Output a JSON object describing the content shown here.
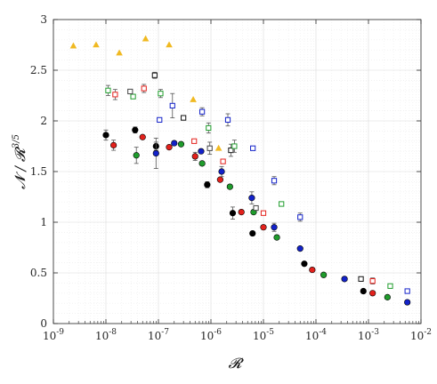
{
  "chart_data": {
    "type": "scatter",
    "xscale": "log",
    "xlim": [
      1e-09,
      0.01
    ],
    "ylim": [
      0,
      3
    ],
    "grid": true,
    "xlabel": "𝓡",
    "ylabel": "𝓝 / 𝓡^{3/5}",
    "x_ticks": [
      {
        "value": 1e-09,
        "base": "10",
        "exp": "-9"
      },
      {
        "value": 1e-08,
        "base": "10",
        "exp": "-8"
      },
      {
        "value": 1e-07,
        "base": "10",
        "exp": "-7"
      },
      {
        "value": 1e-06,
        "base": "10",
        "exp": "-6"
      },
      {
        "value": 1e-05,
        "base": "10",
        "exp": "-5"
      },
      {
        "value": 0.0001,
        "base": "10",
        "exp": "-4"
      },
      {
        "value": 0.001,
        "base": "10",
        "exp": "-3"
      },
      {
        "value": 0.01,
        "base": "10",
        "exp": "-2"
      }
    ],
    "y_ticks": [
      {
        "value": 0,
        "label": "0"
      },
      {
        "value": 0.5,
        "label": "0.5"
      },
      {
        "value": 1,
        "label": "1"
      },
      {
        "value": 1.5,
        "label": "1.5"
      },
      {
        "value": 2,
        "label": "2"
      },
      {
        "value": 2.5,
        "label": "2.5"
      },
      {
        "value": 3,
        "label": "3"
      }
    ],
    "series": [
      {
        "marker": "triangle",
        "color": "#f0b921",
        "filled": true,
        "points": [
          {
            "x": 2.4e-09,
            "y": 2.74
          },
          {
            "x": 6.5e-09,
            "y": 2.75
          },
          {
            "x": 1.8e-08,
            "y": 2.67
          },
          {
            "x": 5.7e-08,
            "y": 2.81
          },
          {
            "x": 1.6e-07,
            "y": 2.75
          },
          {
            "x": 4.6e-07,
            "y": 2.21
          },
          {
            "x": 1.4e-06,
            "y": 1.73
          }
        ]
      },
      {
        "marker": "circle",
        "color": "#000000",
        "filled": true,
        "points": [
          {
            "x": 1e-08,
            "y": 1.86,
            "err": 0.05
          },
          {
            "x": 3.6e-08,
            "y": 1.91,
            "err": 0.03
          },
          {
            "x": 9e-08,
            "y": 1.75,
            "err": 0.04
          },
          {
            "x": 8.5e-07,
            "y": 1.37,
            "err": 0.03
          },
          {
            "x": 2.6e-06,
            "y": 1.09,
            "err": 0.06
          },
          {
            "x": 6.2e-06,
            "y": 0.89
          },
          {
            "x": 6e-05,
            "y": 0.59
          },
          {
            "x": 0.0008,
            "y": 0.32
          }
        ]
      },
      {
        "marker": "circle",
        "color": "#e3211c",
        "filled": true,
        "points": [
          {
            "x": 1.4e-08,
            "y": 1.76,
            "err": 0.05
          },
          {
            "x": 5e-08,
            "y": 1.84
          },
          {
            "x": 1.6e-07,
            "y": 1.74
          },
          {
            "x": 5e-07,
            "y": 1.65,
            "err": 0.04
          },
          {
            "x": 1.5e-06,
            "y": 1.42
          },
          {
            "x": 3.8e-06,
            "y": 1.1
          },
          {
            "x": 1e-05,
            "y": 0.95
          },
          {
            "x": 8.5e-05,
            "y": 0.53
          },
          {
            "x": 0.0012,
            "y": 0.3
          }
        ]
      },
      {
        "marker": "circle",
        "color": "#1f9c2c",
        "filled": true,
        "points": [
          {
            "x": 3.8e-08,
            "y": 1.66,
            "err": 0.08
          },
          {
            "x": 2.7e-07,
            "y": 1.77
          },
          {
            "x": 6.8e-07,
            "y": 1.58
          },
          {
            "x": 2.3e-06,
            "y": 1.35
          },
          {
            "x": 6.5e-06,
            "y": 1.1
          },
          {
            "x": 1.8e-05,
            "y": 0.85
          },
          {
            "x": 0.00014,
            "y": 0.48
          },
          {
            "x": 0.0023,
            "y": 0.26
          }
        ]
      },
      {
        "marker": "circle",
        "color": "#1322c9",
        "filled": true,
        "points": [
          {
            "x": 9e-08,
            "y": 1.68,
            "err": 0.15
          },
          {
            "x": 2e-07,
            "y": 1.78
          },
          {
            "x": 6.5e-07,
            "y": 1.7
          },
          {
            "x": 1.6e-06,
            "y": 1.5,
            "err": 0.05
          },
          {
            "x": 6e-06,
            "y": 1.24,
            "err": 0.06
          },
          {
            "x": 1.6e-05,
            "y": 0.95,
            "err": 0.04
          },
          {
            "x": 5e-05,
            "y": 0.74
          },
          {
            "x": 0.00035,
            "y": 0.44
          },
          {
            "x": 0.0055,
            "y": 0.21
          }
        ]
      },
      {
        "marker": "square",
        "color": "#111111",
        "filled": false,
        "points": [
          {
            "x": 8.5e-08,
            "y": 2.45,
            "err": 0.03
          },
          {
            "x": 3e-07,
            "y": 2.03
          },
          {
            "x": 2.4e-06,
            "y": 1.71,
            "err": 0.06
          },
          {
            "x": 0.00072,
            "y": 0.44
          }
        ]
      },
      {
        "marker": "square",
        "color": "#e3211c",
        "filled": false,
        "points": [
          {
            "x": 1.5e-08,
            "y": 2.26,
            "err": 0.05
          },
          {
            "x": 5.3e-08,
            "y": 2.32,
            "err": 0.04
          },
          {
            "x": 4.8e-07,
            "y": 1.8
          },
          {
            "x": 1.7e-06,
            "y": 1.6
          },
          {
            "x": 1e-05,
            "y": 1.09
          },
          {
            "x": 0.0012,
            "y": 0.42,
            "err": 0.03
          }
        ]
      },
      {
        "marker": "square",
        "color": "#1f9c2c",
        "filled": false,
        "points": [
          {
            "x": 1.1e-08,
            "y": 2.3,
            "err": 0.05
          },
          {
            "x": 3.3e-08,
            "y": 2.24
          },
          {
            "x": 1.1e-07,
            "y": 2.27,
            "err": 0.04
          },
          {
            "x": 9e-07,
            "y": 1.93,
            "err": 0.05
          },
          {
            "x": 2.8e-06,
            "y": 1.75,
            "err": 0.06
          },
          {
            "x": 2.2e-05,
            "y": 1.18
          },
          {
            "x": 0.0026,
            "y": 0.37
          }
        ]
      },
      {
        "marker": "square",
        "color": "#1322c9",
        "filled": false,
        "points": [
          {
            "x": 1.05e-07,
            "y": 2.01
          },
          {
            "x": 1.85e-07,
            "y": 2.15,
            "err": 0.12
          },
          {
            "x": 6.8e-07,
            "y": 2.09,
            "err": 0.04
          },
          {
            "x": 2.1e-06,
            "y": 2.01,
            "err": 0.06
          },
          {
            "x": 6.3e-06,
            "y": 1.73
          },
          {
            "x": 1.6e-05,
            "y": 1.41,
            "err": 0.04
          },
          {
            "x": 5e-05,
            "y": 1.05,
            "err": 0.04
          },
          {
            "x": 0.0055,
            "y": 0.32
          }
        ]
      },
      {
        "marker": "square",
        "color": "#444444",
        "filled": false,
        "points": [
          {
            "x": 2.9e-08,
            "y": 2.29
          },
          {
            "x": 9.5e-07,
            "y": 1.73,
            "err": 0.06
          },
          {
            "x": 7.2e-06,
            "y": 1.14
          }
        ]
      }
    ]
  }
}
